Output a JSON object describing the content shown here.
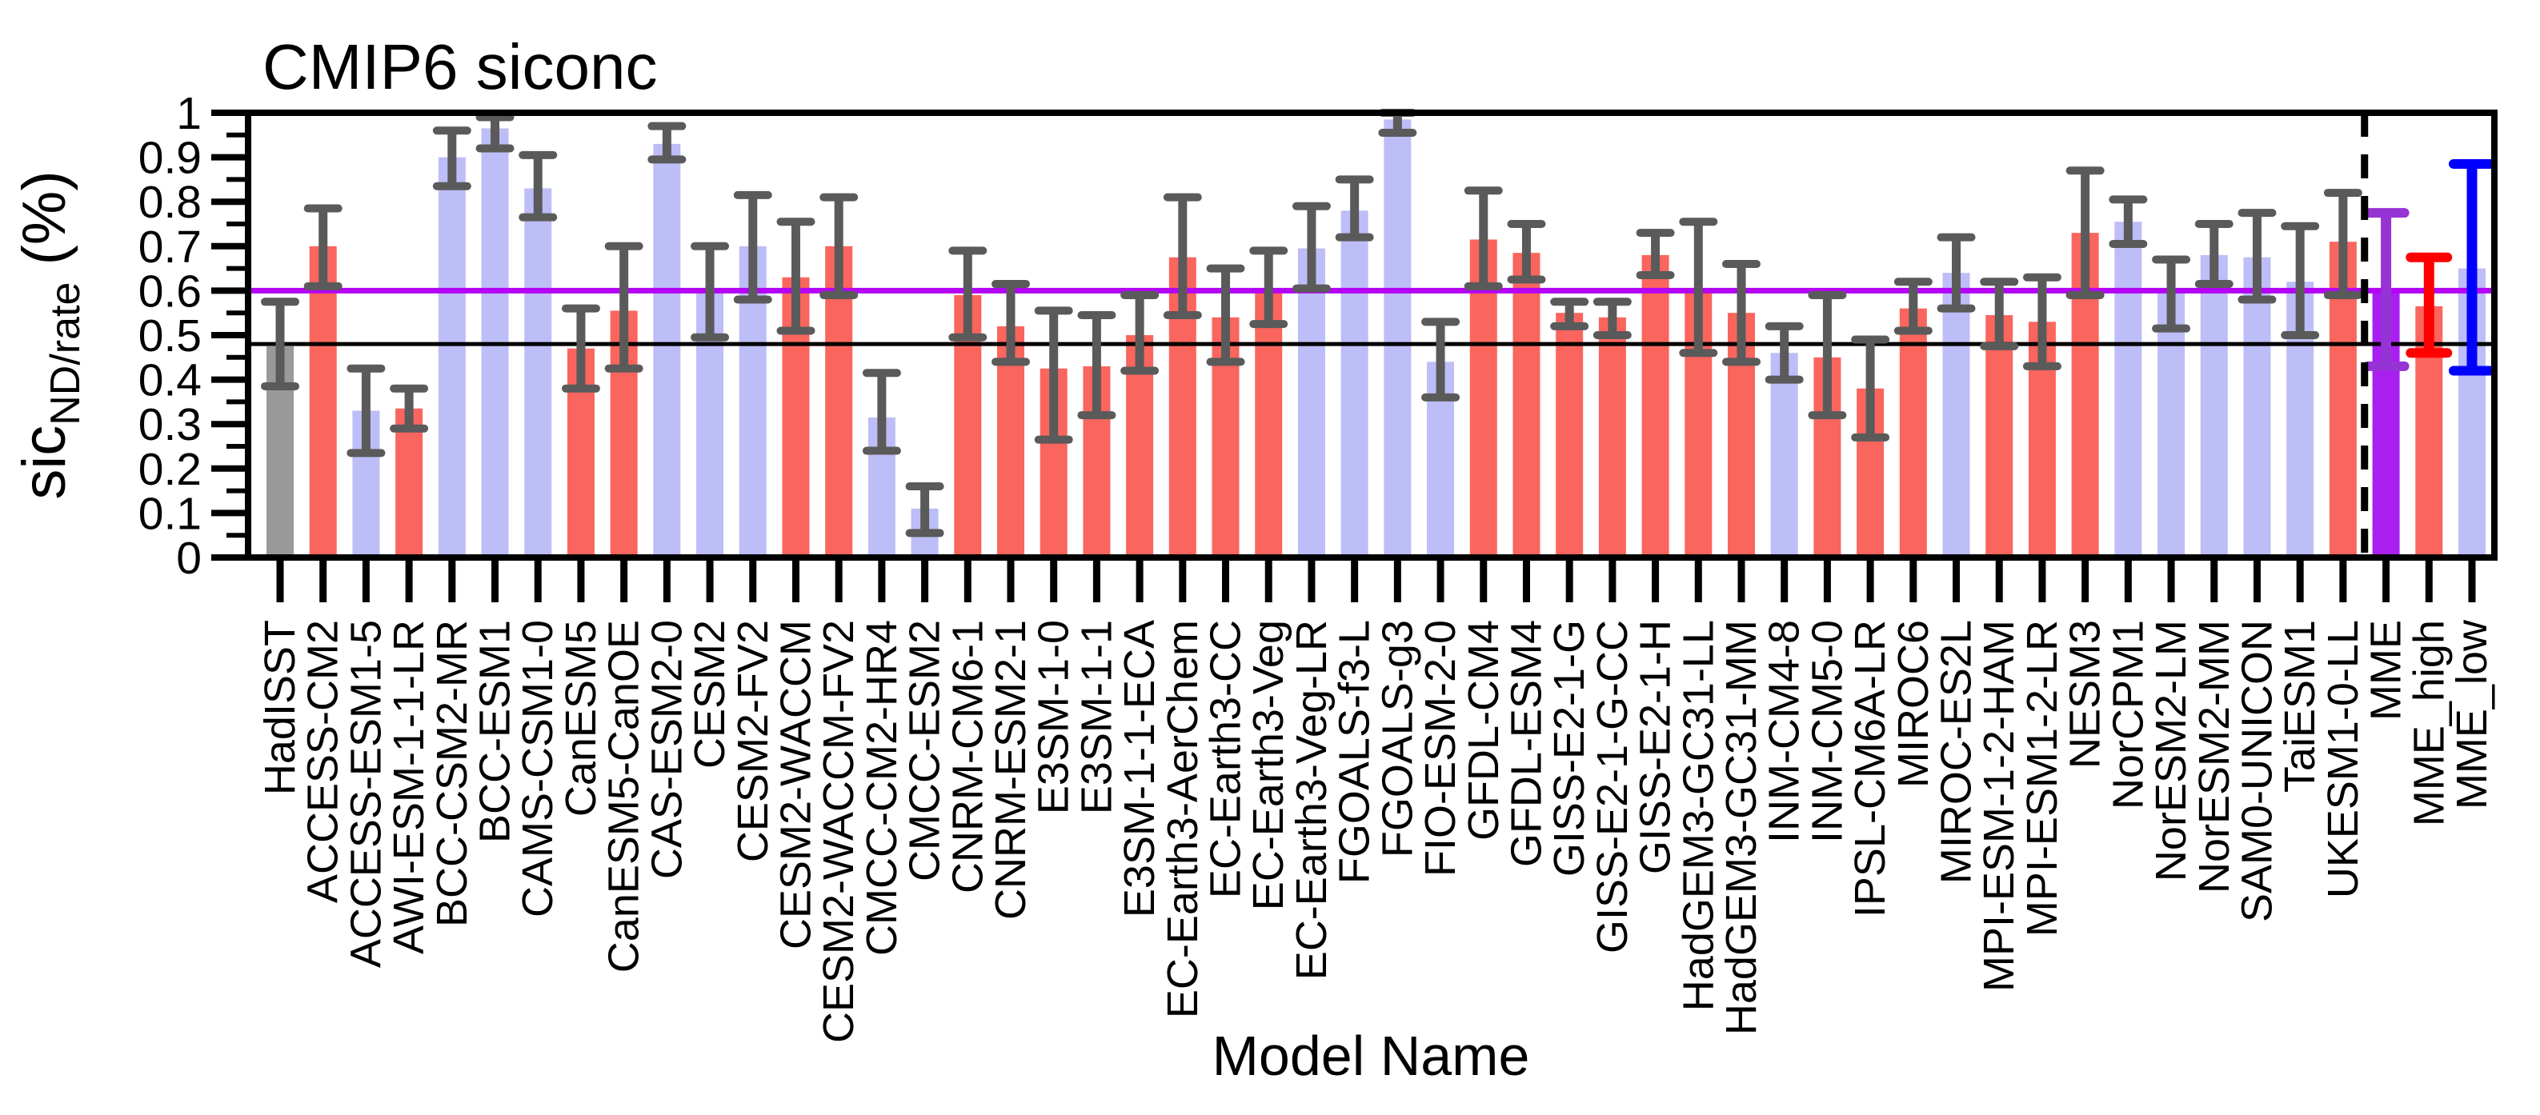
{
  "title": "CMIP6 siconc",
  "x_axis_title": "Model Name",
  "y_axis_label": {
    "main": "sic",
    "sub": "ND/rate",
    "unit": " (%)"
  },
  "chart_data": {
    "type": "bar",
    "title": "CMIP6 siconc",
    "xlabel": "Model Name",
    "ylabel": "sic_ND/rate (%)",
    "ylim": [
      0,
      1
    ],
    "grid": false,
    "ytick_values": [
      0,
      0.1,
      0.2,
      0.3,
      0.4,
      0.5,
      0.6,
      0.7,
      0.8,
      0.9,
      1
    ],
    "ytick_labels": [
      "0",
      "0.1",
      "0.2",
      "0.3",
      "0.4",
      "0.5",
      "0.6",
      "0.7",
      "0.8",
      "0.9",
      "1"
    ],
    "yminor_step": 0.05,
    "reference_lines": [
      {
        "name": "observation-line",
        "value": 0.48,
        "color": "#000000",
        "width": 5,
        "style": "solid"
      },
      {
        "name": "mme-mean-line",
        "value": 0.6,
        "color": "#b404f4",
        "width": 7,
        "style": "solid"
      }
    ],
    "separator_between": [
      "UKESM1-0-LL",
      "MME"
    ],
    "colors": {
      "bar": {
        "obs": "#999999",
        "red": "#fa655e",
        "blue": "#bdbdf7",
        "mme": "#a81ff0",
        "mme_high": "#fa655e",
        "mme_low": "#bdbdf7"
      },
      "error": {
        "obs": "#5a5a5a",
        "red": "#5a5a5a",
        "blue": "#5a5a5a",
        "mme": "#9633d4",
        "mme_high": "#ff0000",
        "mme_low": "#0000ff"
      }
    },
    "bars": [
      {
        "label": "HadISST",
        "value": 0.475,
        "err_low": 0.385,
        "err_high": 0.575,
        "group": "obs"
      },
      {
        "label": "ACCESS-CM2",
        "value": 0.7,
        "err_low": 0.61,
        "err_high": 0.785,
        "group": "red"
      },
      {
        "label": "ACCESS-ESM1-5",
        "value": 0.33,
        "err_low": 0.235,
        "err_high": 0.425,
        "group": "blue"
      },
      {
        "label": "AWI-ESM-1-1-LR",
        "value": 0.335,
        "err_low": 0.29,
        "err_high": 0.38,
        "group": "red"
      },
      {
        "label": "BCC-CSM2-MR",
        "value": 0.9,
        "err_low": 0.835,
        "err_high": 0.96,
        "group": "blue"
      },
      {
        "label": "BCC-ESM1",
        "value": 0.965,
        "err_low": 0.92,
        "err_high": 0.99,
        "group": "blue"
      },
      {
        "label": "CAMS-CSM1-0",
        "value": 0.83,
        "err_low": 0.765,
        "err_high": 0.905,
        "group": "blue"
      },
      {
        "label": "CanESM5",
        "value": 0.47,
        "err_low": 0.38,
        "err_high": 0.56,
        "group": "red"
      },
      {
        "label": "CanESM5-CanOE",
        "value": 0.555,
        "err_low": 0.425,
        "err_high": 0.7,
        "group": "red"
      },
      {
        "label": "CAS-ESM2-0",
        "value": 0.93,
        "err_low": 0.895,
        "err_high": 0.97,
        "group": "blue"
      },
      {
        "label": "CESM2",
        "value": 0.595,
        "err_low": 0.495,
        "err_high": 0.7,
        "group": "blue"
      },
      {
        "label": "CESM2-FV2",
        "value": 0.7,
        "err_low": 0.58,
        "err_high": 0.815,
        "group": "blue"
      },
      {
        "label": "CESM2-WACCM",
        "value": 0.63,
        "err_low": 0.51,
        "err_high": 0.755,
        "group": "red"
      },
      {
        "label": "CESM2-WACCM-FV2",
        "value": 0.7,
        "err_low": 0.59,
        "err_high": 0.81,
        "group": "red"
      },
      {
        "label": "CMCC-CM2-HR4",
        "value": 0.315,
        "err_low": 0.24,
        "err_high": 0.415,
        "group": "blue"
      },
      {
        "label": "CMCC-ESM2",
        "value": 0.11,
        "err_low": 0.055,
        "err_high": 0.16,
        "group": "blue"
      },
      {
        "label": "CNRM-CM6-1",
        "value": 0.59,
        "err_low": 0.495,
        "err_high": 0.69,
        "group": "red"
      },
      {
        "label": "CNRM-ESM2-1",
        "value": 0.52,
        "err_low": 0.44,
        "err_high": 0.615,
        "group": "red"
      },
      {
        "label": "E3SM-1-0",
        "value": 0.425,
        "err_low": 0.265,
        "err_high": 0.555,
        "group": "red"
      },
      {
        "label": "E3SM-1-1",
        "value": 0.43,
        "err_low": 0.32,
        "err_high": 0.545,
        "group": "red"
      },
      {
        "label": "E3SM-1-1-ECA",
        "value": 0.5,
        "err_low": 0.42,
        "err_high": 0.59,
        "group": "red"
      },
      {
        "label": "EC-Earth3-AerChem",
        "value": 0.675,
        "err_low": 0.545,
        "err_high": 0.81,
        "group": "red"
      },
      {
        "label": "EC-Earth3-CC",
        "value": 0.54,
        "err_low": 0.44,
        "err_high": 0.65,
        "group": "red"
      },
      {
        "label": "EC-Earth3-Veg",
        "value": 0.605,
        "err_low": 0.525,
        "err_high": 0.69,
        "group": "red"
      },
      {
        "label": "EC-Earth3-Veg-LR",
        "value": 0.695,
        "err_low": 0.605,
        "err_high": 0.79,
        "group": "blue"
      },
      {
        "label": "FGOALS-f3-L",
        "value": 0.78,
        "err_low": 0.72,
        "err_high": 0.85,
        "group": "blue"
      },
      {
        "label": "FGOALS-g3",
        "value": 0.985,
        "err_low": 0.955,
        "err_high": 1.0,
        "group": "blue"
      },
      {
        "label": "FIO-ESM-2-0",
        "value": 0.44,
        "err_low": 0.36,
        "err_high": 0.53,
        "group": "blue"
      },
      {
        "label": "GFDL-CM4",
        "value": 0.715,
        "err_low": 0.61,
        "err_high": 0.825,
        "group": "red"
      },
      {
        "label": "GFDL-ESM4",
        "value": 0.685,
        "err_low": 0.625,
        "err_high": 0.75,
        "group": "red"
      },
      {
        "label": "GISS-E2-1-G",
        "value": 0.55,
        "err_low": 0.52,
        "err_high": 0.575,
        "group": "red"
      },
      {
        "label": "GISS-E2-1-G-CC",
        "value": 0.54,
        "err_low": 0.5,
        "err_high": 0.575,
        "group": "red"
      },
      {
        "label": "GISS-E2-1-H",
        "value": 0.68,
        "err_low": 0.635,
        "err_high": 0.73,
        "group": "red"
      },
      {
        "label": "HadGEM3-GC31-LL",
        "value": 0.595,
        "err_low": 0.46,
        "err_high": 0.755,
        "group": "red"
      },
      {
        "label": "HadGEM3-GC31-MM",
        "value": 0.55,
        "err_low": 0.44,
        "err_high": 0.66,
        "group": "red"
      },
      {
        "label": "INM-CM4-8",
        "value": 0.46,
        "err_low": 0.4,
        "err_high": 0.52,
        "group": "blue"
      },
      {
        "label": "INM-CM5-0",
        "value": 0.45,
        "err_low": 0.32,
        "err_high": 0.59,
        "group": "red"
      },
      {
        "label": "IPSL-CM6A-LR",
        "value": 0.38,
        "err_low": 0.27,
        "err_high": 0.49,
        "group": "red"
      },
      {
        "label": "MIROC6",
        "value": 0.56,
        "err_low": 0.51,
        "err_high": 0.62,
        "group": "red"
      },
      {
        "label": "MIROC-ES2L",
        "value": 0.64,
        "err_low": 0.56,
        "err_high": 0.72,
        "group": "blue"
      },
      {
        "label": "MPI-ESM-1-2-HAM",
        "value": 0.545,
        "err_low": 0.475,
        "err_high": 0.62,
        "group": "red"
      },
      {
        "label": "MPI-ESM1-2-LR",
        "value": 0.53,
        "err_low": 0.43,
        "err_high": 0.63,
        "group": "red"
      },
      {
        "label": "NESM3",
        "value": 0.73,
        "err_low": 0.59,
        "err_high": 0.87,
        "group": "red"
      },
      {
        "label": "NorCPM1",
        "value": 0.755,
        "err_low": 0.705,
        "err_high": 0.805,
        "group": "blue"
      },
      {
        "label": "NorESM2-LM",
        "value": 0.6,
        "err_low": 0.515,
        "err_high": 0.67,
        "group": "blue"
      },
      {
        "label": "NorESM2-MM",
        "value": 0.68,
        "err_low": 0.615,
        "err_high": 0.75,
        "group": "blue"
      },
      {
        "label": "SAM0-UNICON",
        "value": 0.675,
        "err_low": 0.58,
        "err_high": 0.775,
        "group": "blue"
      },
      {
        "label": "TaiESM1",
        "value": 0.62,
        "err_low": 0.5,
        "err_high": 0.745,
        "group": "blue"
      },
      {
        "label": "UKESM1-0-LL",
        "value": 0.71,
        "err_low": 0.59,
        "err_high": 0.82,
        "group": "red"
      },
      {
        "label": "MME",
        "value": 0.6,
        "err_low": 0.43,
        "err_high": 0.775,
        "group": "mme"
      },
      {
        "label": "MME_high",
        "value": 0.565,
        "err_low": 0.46,
        "err_high": 0.675,
        "group": "mme_high"
      },
      {
        "label": "MME_low",
        "value": 0.65,
        "err_low": 0.42,
        "err_high": 0.885,
        "group": "mme_low"
      }
    ]
  }
}
